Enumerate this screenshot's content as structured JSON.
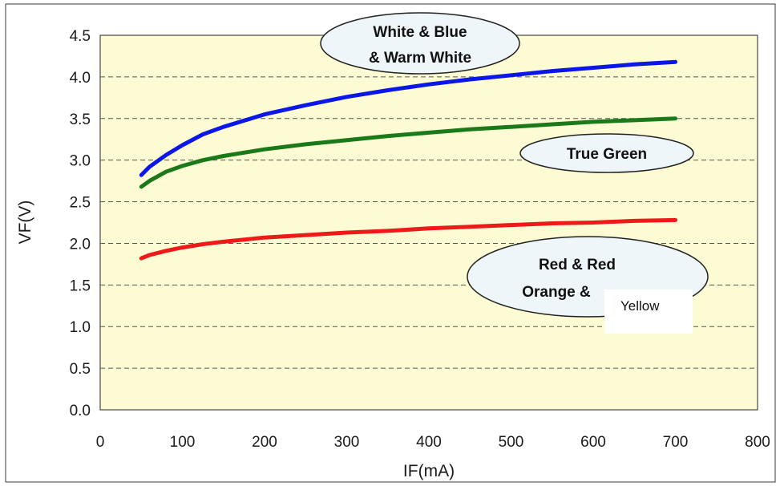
{
  "chart_data": {
    "type": "line",
    "xlabel": "IF(mA)",
    "ylabel": "VF(V)",
    "xlim": [
      0,
      800
    ],
    "ylim": [
      0.0,
      4.5
    ],
    "x_ticks": [
      "0",
      "100",
      "200",
      "300",
      "400",
      "500",
      "600",
      "700",
      "800"
    ],
    "y_ticks": [
      "0.0",
      "0.5",
      "1.0",
      "1.5",
      "2.0",
      "2.5",
      "3.0",
      "3.5",
      "4.0",
      "4.5"
    ],
    "grid": "horizontal-dashed",
    "plot_background": "#fdfbd3",
    "x": [
      50,
      60,
      80,
      100,
      125,
      150,
      200,
      250,
      300,
      350,
      400,
      450,
      500,
      550,
      600,
      650,
      700
    ],
    "series": [
      {
        "color": "#0a17e6",
        "values": [
          2.82,
          2.92,
          3.06,
          3.18,
          3.31,
          3.4,
          3.55,
          3.66,
          3.76,
          3.84,
          3.91,
          3.97,
          4.02,
          4.07,
          4.11,
          4.15,
          4.18
        ]
      },
      {
        "color": "#1a7a1a",
        "values": [
          2.68,
          2.75,
          2.86,
          2.93,
          3.0,
          3.05,
          3.13,
          3.19,
          3.24,
          3.29,
          3.33,
          3.37,
          3.4,
          3.43,
          3.46,
          3.48,
          3.5
        ]
      },
      {
        "color": "#ee1a1a",
        "values": [
          1.82,
          1.86,
          1.91,
          1.95,
          1.99,
          2.02,
          2.07,
          2.1,
          2.13,
          2.15,
          2.18,
          2.2,
          2.22,
          2.24,
          2.25,
          2.27,
          2.28
        ]
      }
    ],
    "annotations": [
      {
        "lines": [
          "White & Blue",
          "& Warm White"
        ]
      },
      {
        "lines": [
          "True Green"
        ]
      },
      {
        "lines": [
          "Red & Red",
          "Orange &"
        ]
      }
    ],
    "overlay_label": "Yellow"
  }
}
